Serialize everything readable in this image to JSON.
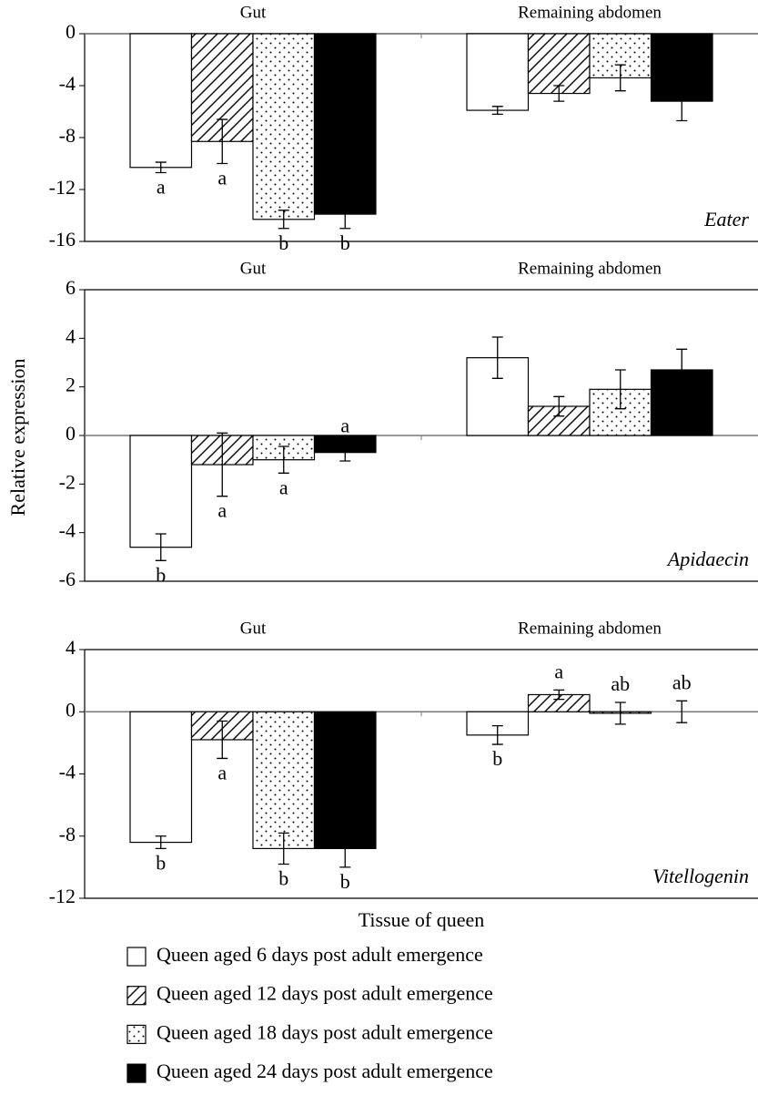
{
  "y_label": "Relative expression",
  "x_label": "Tissue of queen",
  "legend": [
    {
      "name": "Queen aged 6 days post adult emergence",
      "fill": "white"
    },
    {
      "name": "Queen aged 12 days post adult emergence",
      "fill": "hatch"
    },
    {
      "name": "Queen aged 18 days post adult emergence",
      "fill": "dots"
    },
    {
      "name": "Queen aged 24 days post adult emergence",
      "fill": "black"
    }
  ],
  "chart_data": [
    {
      "type": "bar",
      "label": "Eater",
      "categories": [
        "Gut",
        "Remaining abdomen"
      ],
      "ylim": [
        -16,
        0
      ],
      "yticks": [
        0,
        -4,
        -8,
        -12,
        -16
      ],
      "series": [
        {
          "values": [
            -10.3,
            -5.9
          ],
          "errors": [
            0.4,
            0.3
          ],
          "letters": [
            "a",
            null
          ]
        },
        {
          "values": [
            -8.3,
            -4.6
          ],
          "errors": [
            1.7,
            0.6
          ],
          "letters": [
            "a",
            null
          ]
        },
        {
          "values": [
            -14.3,
            -3.4
          ],
          "errors": [
            0.7,
            1.0
          ],
          "letters": [
            "b",
            null
          ]
        },
        {
          "values": [
            -13.9,
            -5.2
          ],
          "errors": [
            1.1,
            1.5
          ],
          "letters": [
            "b",
            null
          ]
        }
      ]
    },
    {
      "type": "bar",
      "label": "Apidaecin",
      "categories": [
        "Gut",
        "Remaining abdomen"
      ],
      "ylim": [
        -6,
        6
      ],
      "yticks": [
        6,
        4,
        2,
        0,
        -2,
        -4,
        -6
      ],
      "series": [
        {
          "values": [
            -4.6,
            3.2
          ],
          "errors": [
            0.55,
            0.85
          ],
          "letters": [
            "b",
            null
          ]
        },
        {
          "values": [
            -1.2,
            1.2
          ],
          "errors": [
            1.3,
            0.4
          ],
          "letters": [
            "a",
            null
          ]
        },
        {
          "values": [
            -1.0,
            1.9
          ],
          "errors": [
            0.55,
            0.8
          ],
          "letters": [
            "a",
            null
          ]
        },
        {
          "values": [
            -0.7,
            2.7
          ],
          "errors": [
            0.35,
            0.85
          ],
          "letters": [
            "a",
            null
          ]
        }
      ]
    },
    {
      "type": "bar",
      "label": "Vitellogenin",
      "categories": [
        "Gut",
        "Remaining abdomen"
      ],
      "ylim": [
        -12,
        4
      ],
      "yticks": [
        4,
        0,
        -4,
        -8,
        -12
      ],
      "series": [
        {
          "values": [
            -8.4,
            -1.5
          ],
          "errors": [
            0.4,
            0.6
          ],
          "letters": [
            "b",
            "b"
          ]
        },
        {
          "values": [
            -1.8,
            1.1
          ],
          "errors": [
            1.2,
            0.3
          ],
          "letters": [
            "a",
            "a"
          ]
        },
        {
          "values": [
            -8.8,
            -0.1
          ],
          "errors": [
            1.0,
            0.7
          ],
          "letters": [
            "b",
            "ab"
          ]
        },
        {
          "values": [
            -8.8,
            0
          ],
          "errors": [
            1.2,
            0.7
          ],
          "letters": [
            "b",
            "ab"
          ]
        }
      ]
    }
  ]
}
